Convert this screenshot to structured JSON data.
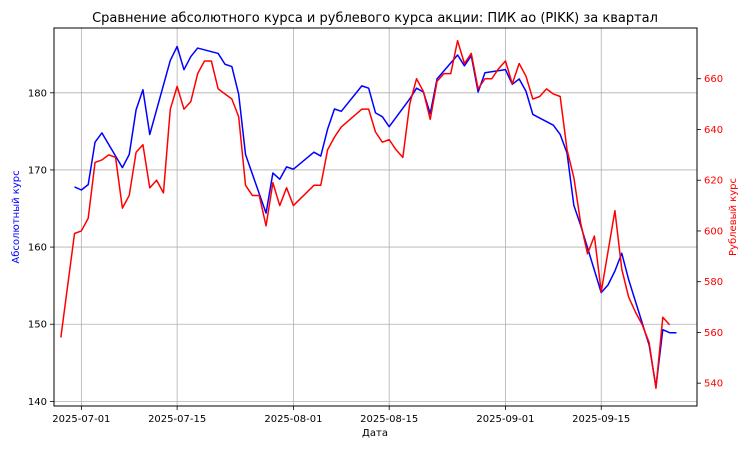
{
  "chart_data": {
    "type": "line",
    "title": "Сравнение абсолютного курса и рублевого курса акции: ПИК ао (PIKK) за квартал",
    "xlabel": "Дата",
    "ylabel_left": "Абсолютный курс",
    "ylabel_right": "Рублевый курс",
    "x_ticks": [
      "2025-07-01",
      "2025-07-15",
      "2025-08-01",
      "2025-08-15",
      "2025-09-01",
      "2025-09-15"
    ],
    "y_left_ticks": [
      140,
      150,
      160,
      170,
      180
    ],
    "y_right_ticks": [
      540,
      560,
      580,
      600,
      620,
      640,
      660
    ],
    "xlim": [
      "2025-06-27",
      "2025-09-29"
    ],
    "ylim_left": [
      139.4,
      188.4
    ],
    "ylim_right": [
      531,
      680
    ],
    "grid": true,
    "colors": {
      "left": "#0000ff",
      "right": "#ff0000"
    },
    "series": [
      {
        "name": "Абсолютный курс",
        "axis": "left",
        "color": "#0000ff",
        "points": [
          [
            "2025-06-30",
            167.8
          ],
          [
            "2025-07-01",
            167.4
          ],
          [
            "2025-07-02",
            168.1
          ],
          [
            "2025-07-03",
            173.6
          ],
          [
            "2025-07-04",
            174.8
          ],
          [
            "2025-07-07",
            170.3
          ],
          [
            "2025-07-08",
            172.0
          ],
          [
            "2025-07-09",
            177.8
          ],
          [
            "2025-07-10",
            180.4
          ],
          [
            "2025-07-11",
            174.6
          ],
          [
            "2025-07-14",
            184.2
          ],
          [
            "2025-07-15",
            186.0
          ],
          [
            "2025-07-16",
            183.0
          ],
          [
            "2025-07-17",
            184.7
          ],
          [
            "2025-07-18",
            185.8
          ],
          [
            "2025-07-21",
            185.1
          ],
          [
            "2025-07-22",
            183.7
          ],
          [
            "2025-07-23",
            183.4
          ],
          [
            "2025-07-24",
            179.8
          ],
          [
            "2025-07-25",
            172.0
          ],
          [
            "2025-07-28",
            164.4
          ],
          [
            "2025-07-29",
            169.6
          ],
          [
            "2025-07-30",
            168.8
          ],
          [
            "2025-07-31",
            170.4
          ],
          [
            "2025-08-01",
            170.1
          ],
          [
            "2025-08-04",
            172.3
          ],
          [
            "2025-08-05",
            171.8
          ],
          [
            "2025-08-06",
            175.3
          ],
          [
            "2025-08-07",
            177.9
          ],
          [
            "2025-08-08",
            177.6
          ],
          [
            "2025-08-11",
            180.9
          ],
          [
            "2025-08-12",
            180.6
          ],
          [
            "2025-08-13",
            177.4
          ],
          [
            "2025-08-14",
            176.9
          ],
          [
            "2025-08-15",
            175.6
          ],
          [
            "2025-08-18",
            179.2
          ],
          [
            "2025-08-19",
            180.6
          ],
          [
            "2025-08-20",
            180.1
          ],
          [
            "2025-08-21",
            177.3
          ],
          [
            "2025-08-22",
            181.8
          ],
          [
            "2025-08-25",
            184.9
          ],
          [
            "2025-08-26",
            183.5
          ],
          [
            "2025-08-27",
            184.8
          ],
          [
            "2025-08-28",
            180.1
          ],
          [
            "2025-08-29",
            182.6
          ],
          [
            "2025-09-01",
            183.0
          ],
          [
            "2025-09-02",
            181.1
          ],
          [
            "2025-09-03",
            181.8
          ],
          [
            "2025-09-04",
            180.2
          ],
          [
            "2025-09-05",
            177.2
          ],
          [
            "2025-09-08",
            175.8
          ],
          [
            "2025-09-09",
            174.6
          ],
          [
            "2025-09-10",
            172.2
          ],
          [
            "2025-09-11",
            165.4
          ],
          [
            "2025-09-12",
            162.8
          ],
          [
            "2025-09-15",
            154.1
          ],
          [
            "2025-09-16",
            155.1
          ],
          [
            "2025-09-17",
            156.9
          ],
          [
            "2025-09-18",
            159.2
          ],
          [
            "2025-09-19",
            155.8
          ],
          [
            "2025-09-22",
            147.3
          ],
          [
            "2025-09-23",
            141.9
          ],
          [
            "2025-09-24",
            149.3
          ],
          [
            "2025-09-25",
            148.9
          ],
          [
            "2025-09-26",
            148.9
          ]
        ]
      },
      {
        "name": "Рублевый курс",
        "axis": "right",
        "color": "#ff0000",
        "points": [
          [
            "2025-06-28",
            558
          ],
          [
            "2025-06-30",
            599
          ],
          [
            "2025-07-01",
            600
          ],
          [
            "2025-07-02",
            605
          ],
          [
            "2025-07-03",
            627
          ],
          [
            "2025-07-04",
            628
          ],
          [
            "2025-07-05",
            630
          ],
          [
            "2025-07-06",
            629
          ],
          [
            "2025-07-07",
            609
          ],
          [
            "2025-07-08",
            614
          ],
          [
            "2025-07-09",
            631
          ],
          [
            "2025-07-10",
            634
          ],
          [
            "2025-07-11",
            617
          ],
          [
            "2025-07-12",
            620
          ],
          [
            "2025-07-13",
            615
          ],
          [
            "2025-07-14",
            648
          ],
          [
            "2025-07-15",
            657
          ],
          [
            "2025-07-16",
            648
          ],
          [
            "2025-07-17",
            651
          ],
          [
            "2025-07-18",
            662
          ],
          [
            "2025-07-19",
            667
          ],
          [
            "2025-07-20",
            667
          ],
          [
            "2025-07-21",
            656
          ],
          [
            "2025-07-22",
            654
          ],
          [
            "2025-07-23",
            652
          ],
          [
            "2025-07-24",
            645
          ],
          [
            "2025-07-25",
            618
          ],
          [
            "2025-07-26",
            614
          ],
          [
            "2025-07-27",
            614
          ],
          [
            "2025-07-28",
            602
          ],
          [
            "2025-07-29",
            619
          ],
          [
            "2025-07-30",
            610
          ],
          [
            "2025-07-31",
            617
          ],
          [
            "2025-08-01",
            610
          ],
          [
            "2025-08-04",
            618
          ],
          [
            "2025-08-05",
            618
          ],
          [
            "2025-08-06",
            632
          ],
          [
            "2025-08-07",
            637
          ],
          [
            "2025-08-08",
            641
          ],
          [
            "2025-08-11",
            648
          ],
          [
            "2025-08-12",
            648
          ],
          [
            "2025-08-13",
            639
          ],
          [
            "2025-08-14",
            635
          ],
          [
            "2025-08-15",
            636
          ],
          [
            "2025-08-16",
            632
          ],
          [
            "2025-08-17",
            629
          ],
          [
            "2025-08-18",
            650
          ],
          [
            "2025-08-19",
            660
          ],
          [
            "2025-08-20",
            655
          ],
          [
            "2025-08-21",
            644
          ],
          [
            "2025-08-22",
            659
          ],
          [
            "2025-08-23",
            662
          ],
          [
            "2025-08-24",
            662
          ],
          [
            "2025-08-25",
            675
          ],
          [
            "2025-08-26",
            666
          ],
          [
            "2025-08-27",
            670
          ],
          [
            "2025-08-28",
            656
          ],
          [
            "2025-08-29",
            660
          ],
          [
            "2025-08-30",
            660
          ],
          [
            "2025-08-31",
            664
          ],
          [
            "2025-09-01",
            667
          ],
          [
            "2025-09-02",
            658
          ],
          [
            "2025-09-03",
            666
          ],
          [
            "2025-09-04",
            661
          ],
          [
            "2025-09-05",
            652
          ],
          [
            "2025-09-06",
            653
          ],
          [
            "2025-09-07",
            656
          ],
          [
            "2025-09-08",
            654
          ],
          [
            "2025-09-09",
            653
          ],
          [
            "2025-09-10",
            632
          ],
          [
            "2025-09-11",
            621
          ],
          [
            "2025-09-12",
            603
          ],
          [
            "2025-09-13",
            591
          ],
          [
            "2025-09-14",
            598
          ],
          [
            "2025-09-15",
            576
          ],
          [
            "2025-09-16",
            592
          ],
          [
            "2025-09-17",
            608
          ],
          [
            "2025-09-18",
            585
          ],
          [
            "2025-09-19",
            574
          ],
          [
            "2025-09-20",
            568
          ],
          [
            "2025-09-21",
            563
          ],
          [
            "2025-09-22",
            556
          ],
          [
            "2025-09-23",
            538
          ],
          [
            "2025-09-24",
            566
          ],
          [
            "2025-09-25",
            563
          ]
        ]
      }
    ]
  }
}
